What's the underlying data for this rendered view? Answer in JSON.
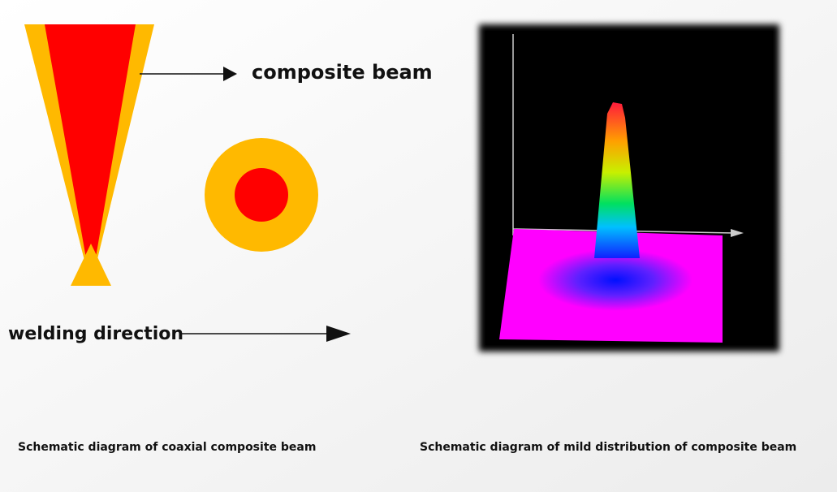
{
  "labels": {
    "beam": "composite beam",
    "direction": "welding direction"
  },
  "captions": {
    "left": "Schematic diagram of coaxial composite beam",
    "right": "Schematic diagram of mild distribution of composite beam"
  }
}
